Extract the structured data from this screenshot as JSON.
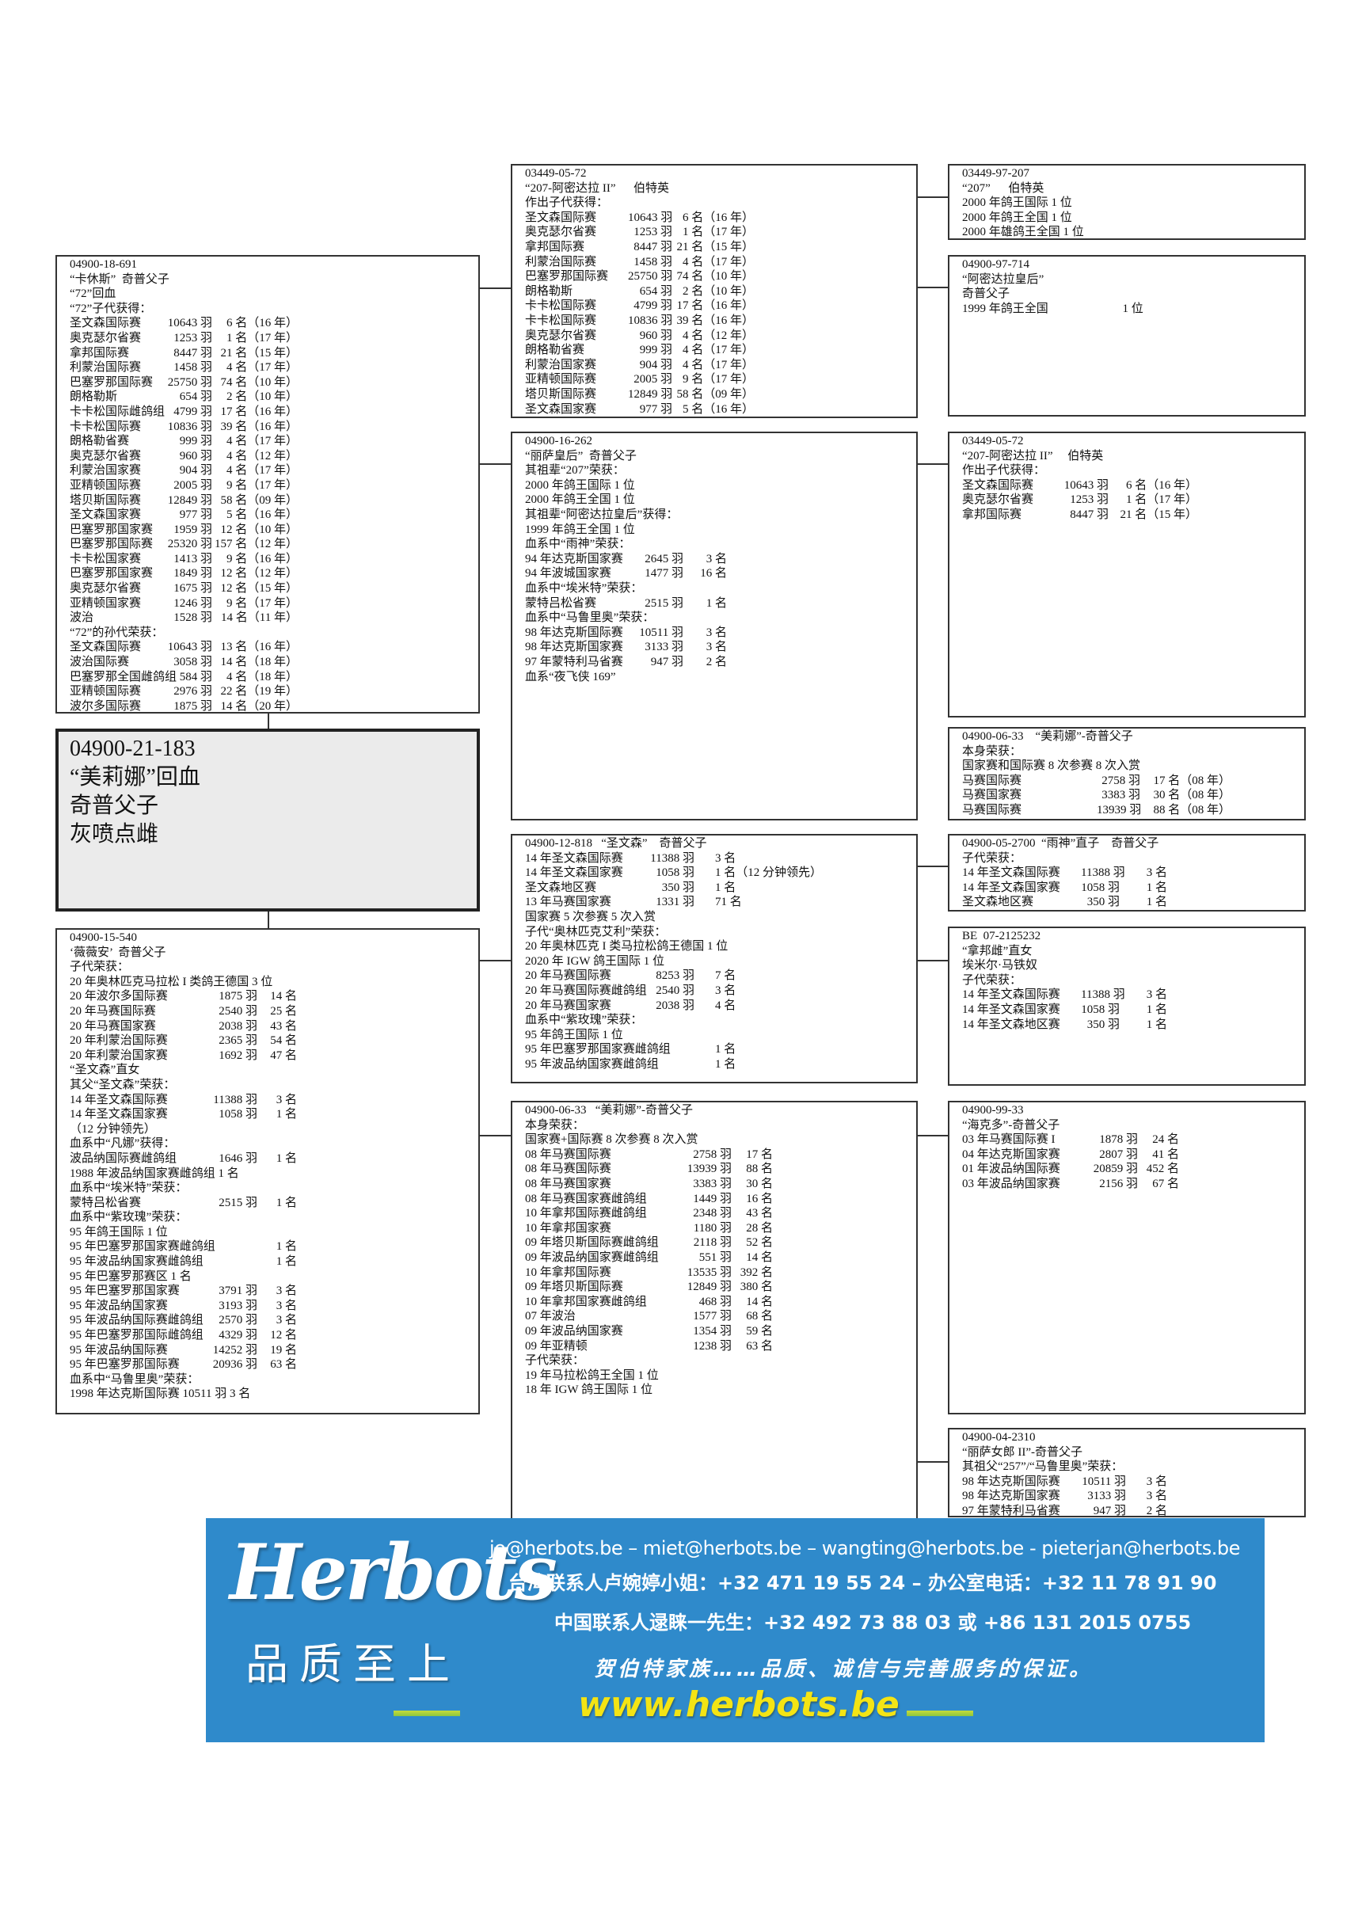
{
  "subject": {
    "ring": "04900-21-183",
    "name": "“美莉娜”回血",
    "breeder": "奇普父子",
    "color": "灰喷点雌"
  },
  "boxes": {
    "L1": [
      "04900-18-691",
      "“卡休斯”  奇普父子",
      "“72”回血",
      "“72”子代获得：",
      [
        "圣文森国际赛",
        "10643 羽",
        "6 名（16 年）"
      ],
      [
        "奥克瑟尔省赛",
        "1253 羽",
        "1 名（17 年）"
      ],
      [
        "拿邦国际赛",
        "8447 羽",
        "21 名（15 年）"
      ],
      [
        "利蒙治国际赛",
        "1458 羽",
        "4 名（17 年）"
      ],
      [
        "巴塞罗那国际赛",
        "25750 羽",
        "74 名（10 年）"
      ],
      [
        "朗格勒斯",
        "654 羽",
        "2 名（10 年）"
      ],
      [
        "卡卡松国际雌鸽组",
        "4799 羽",
        "17 名（16 年）"
      ],
      [
        "卡卡松国际赛",
        "10836 羽",
        "39 名（16 年）"
      ],
      [
        "朗格勒省赛",
        "999 羽",
        "4 名（17 年）"
      ],
      [
        "奥克瑟尔省赛",
        "960 羽",
        "4 名（12 年）"
      ],
      [
        "利蒙治国家赛",
        "904 羽",
        "4 名（17 年）"
      ],
      [
        "亚精顿国际赛",
        "2005 羽",
        "9 名（17 年）"
      ],
      [
        "塔贝斯国际赛",
        "12849 羽",
        "58 名（09 年）"
      ],
      [
        "圣文森国家赛",
        "977 羽",
        "5 名（16 年）"
      ],
      [
        "巴塞罗那国家赛",
        "1959 羽",
        "12 名（10 年）"
      ],
      [
        "巴塞罗那国际赛",
        "25320 羽",
        "157 名（12 年）"
      ],
      [
        "卡卡松国家赛",
        "1413 羽",
        "9 名（16 年）"
      ],
      [
        "巴塞罗那国家赛",
        "1849 羽",
        "12 名（12 年）"
      ],
      [
        "奥克瑟尔省赛",
        "1675 羽",
        "12 名（15 年）"
      ],
      [
        "亚精顿国家赛",
        "1246 羽",
        "9 名（17 年）"
      ],
      [
        "波治",
        "1528 羽",
        "14 名（11 年）"
      ],
      "“72”的孙代荣获：",
      [
        "圣文森国际赛",
        "10643 羽",
        "13 名（16 年）"
      ],
      [
        "波治国际赛",
        "3058 羽",
        "14 名（18 年）"
      ],
      [
        "巴塞罗那全国雌鸽组",
        "584 羽",
        "4 名（18 年）"
      ],
      [
        "亚精顿国际赛",
        "2976 羽",
        "22 名（19 年）"
      ],
      [
        "波尔多国际赛",
        "1875 羽",
        "14 名（20 年）"
      ]
    ],
    "L2": [
      "04900-15-540",
      "‘薇薇安’  奇普父子",
      "子代荣获：",
      "20 年奥林匹克马拉松 I 类鸽王德国 3 位",
      [
        "20 年波尔多国际赛",
        "1875 羽",
        "14 名"
      ],
      [
        "20 年马赛国际赛",
        "2540 羽",
        "25 名"
      ],
      [
        "20 年马赛国家赛",
        "2038 羽",
        "43 名"
      ],
      [
        "20 年利蒙治国际赛",
        "2365 羽",
        "54 名"
      ],
      [
        "20 年利蒙治国家赛",
        "1692 羽",
        "47 名"
      ],
      "“圣文森”直女",
      "其父“圣文森”荣获：",
      [
        "14 年圣文森国际赛",
        "11388 羽",
        "3 名"
      ],
      [
        "14 年圣文森国家赛",
        "1058 羽",
        "1 名"
      ],
      "（12 分钟领先）",
      "血系中“凡娜”获得：",
      [
        "波品纳国际赛雌鸽组",
        "1646 羽",
        "1 名"
      ],
      "1988 年波品纳国家赛雌鸽组 1 名",
      "血系中“埃米特”荣获：",
      [
        "蒙特吕松省赛",
        "2515 羽",
        "1 名"
      ],
      "血系中“紫玫瑰”荣获：",
      "95 年鸽王国际 1 位",
      [
        "95 年巴塞罗那国家赛雌鸽组",
        "",
        "1 名"
      ],
      [
        "95 年波品纳国家赛雌鸽组",
        "",
        "1 名"
      ],
      "95 年巴塞罗那赛区 1 名",
      [
        "95 年巴塞罗那国家赛",
        "3791 羽",
        "3 名"
      ],
      [
        "95 年波品纳国家赛",
        "3193 羽",
        "3 名"
      ],
      [
        "95 年波品纳国际赛雌鸽组",
        "2570 羽",
        "3 名"
      ],
      [
        "95 年巴塞罗那国际雌鸽组",
        "4329 羽",
        "12 名"
      ],
      [
        "95 年波品纳国际赛",
        "14252 羽",
        "19 名"
      ],
      [
        "95 年巴塞罗那国际赛",
        "20936 羽",
        "63 名"
      ],
      "血系中“马鲁里奥”荣获：",
      "1998 年达克斯国际赛 10511 羽 3 名"
    ],
    "M1": [
      "03449-05-72",
      "“207-阿密达拉 II”      伯特英",
      "作出子代获得：",
      [
        "圣文森国际赛",
        "10643 羽",
        "6 名（16 年）"
      ],
      [
        "奥克瑟尔省赛",
        "1253 羽",
        "1 名（17 年）"
      ],
      [
        "拿邦国际赛",
        "8447 羽",
        "21 名（15 年）"
      ],
      [
        "利蒙治国际赛",
        "1458 羽",
        "4 名（17 年）"
      ],
      [
        "巴塞罗那国际赛",
        "25750 羽",
        "74 名（10 年）"
      ],
      [
        "朗格勒斯",
        "654 羽",
        "2 名（10 年）"
      ],
      [
        "卡卡松国际赛",
        "4799 羽",
        "17 名（16 年）"
      ],
      [
        "卡卡松国际赛",
        "10836 羽",
        "39 名（16 年）"
      ],
      [
        "奥克瑟尔省赛",
        "960 羽",
        "4 名（12 年）"
      ],
      [
        "朗格勒省赛",
        "999 羽",
        "4 名（17 年）"
      ],
      [
        "利蒙治国家赛",
        "904 羽",
        "4 名（17 年）"
      ],
      [
        "亚精顿国际赛",
        "2005 羽",
        "9 名（17 年）"
      ],
      [
        "塔贝斯国际赛",
        "12849 羽",
        "58 名（09 年）"
      ],
      [
        "圣文森国家赛",
        "977 羽",
        "5 名（16 年）"
      ]
    ],
    "M2": [
      "04900-16-262",
      "“丽萨皇后”  奇普父子",
      "其祖辈“207”荣获：",
      "2000 年鸽王国际 1 位",
      "2000 年鸽王全国 1 位",
      "其祖辈“阿密达拉皇后”获得：",
      "1999 年鸽王全国 1 位",
      "血系中“雨神”荣获：",
      [
        "94 年达克斯国家赛",
        "2645 羽",
        "3 名"
      ],
      [
        "94 年波城国家赛",
        "1477 羽",
        "16 名"
      ],
      "血系中“埃米特”荣获：",
      [
        "蒙特吕松省赛",
        "2515 羽",
        "1 名"
      ],
      "血系中“马鲁里奥”荣获：",
      [
        "98 年达克斯国际赛",
        "10511 羽",
        "3 名"
      ],
      [
        "98 年达克斯国家赛",
        "3133 羽",
        "3 名"
      ],
      [
        "97 年蒙特利马省赛",
        "947 羽",
        "2 名"
      ],
      "血系“夜飞侠 169”"
    ],
    "M3": [
      "04900-12-818   “圣文森”    奇普父子",
      [
        "14 年圣文森国际赛",
        "11388 羽",
        "3 名"
      ],
      [
        "14 年圣文森国家赛",
        "1058 羽",
        "1 名（12 分钟领先）"
      ],
      [
        "圣文森地区赛",
        "350 羽",
        "1 名"
      ],
      [
        "13 年马赛国家赛",
        "1331 羽",
        "71 名"
      ],
      "国家赛 5 次参赛 5 次入赏",
      "子代“奥林匹克艾利”荣获：",
      "20 年奥林匹克 I 类马拉松鸽王德国 1 位",
      "2020 年 IGW 鸽王国际 1 位",
      [
        "20 年马赛国际赛",
        "8253 羽",
        "7 名"
      ],
      [
        "20 年马赛国际赛雌鸽组",
        "2540 羽",
        "3 名"
      ],
      [
        "20 年马赛国家赛",
        "2038 羽",
        "4 名"
      ],
      "血系中“紫玫瑰”荣获：",
      "95 年鸽王国际 1 位",
      [
        "95 年巴塞罗那国家赛雌鸽组",
        "",
        "1 名"
      ],
      [
        "95 年波品纳国家赛雌鸽组",
        "",
        "1 名"
      ]
    ],
    "M4": [
      "04900-06-33   “美莉娜”-奇普父子",
      "本身荣获：",
      "国家赛+国际赛 8 次参赛 8 次入赏",
      [
        "08 年马赛国际赛",
        "2758 羽",
        "17 名"
      ],
      [
        "08 年马赛国际赛",
        "13939 羽",
        "88 名"
      ],
      [
        "08 年马赛国家赛",
        "3383 羽",
        "30 名"
      ],
      [
        "08 年马赛国家赛雌鸽组",
        "1449 羽",
        "16 名"
      ],
      [
        "10 年拿邦国际赛雌鸽组",
        "2348 羽",
        "43 名"
      ],
      [
        "10 年拿邦国家赛",
        "1180 羽",
        "28 名"
      ],
      [
        "09 年塔贝斯国际赛雌鸽组",
        "2118 羽",
        "52 名"
      ],
      [
        "09 年波品纳国家赛雌鸽组",
        "551 羽",
        "14 名"
      ],
      [
        "10 年拿邦国际赛",
        "13535 羽",
        "392 名"
      ],
      [
        "09 年塔贝斯国际赛",
        "12849 羽",
        "380 名"
      ],
      [
        "10 年拿邦国家赛雌鸽组",
        "468 羽",
        "14 名"
      ],
      [
        "07 年波治",
        "1577 羽",
        "68 名"
      ],
      [
        "09 年波品纳国家赛",
        "1354 羽",
        "59 名"
      ],
      [
        "09 年亚精顿",
        "1238 羽",
        "63 名"
      ],
      "子代荣获：",
      "19 年马拉松鸽王全国 1 位",
      "18 年 IGW 鸽王国际 1 位"
    ],
    "R1": [
      "03449-97-207",
      "“207”      伯特英",
      "2000 年鸽王国际 1 位",
      "2000 年鸽王全国 1 位",
      "2000 年雄鸽王全国 1 位"
    ],
    "R2": [
      "04900-97-714",
      "“阿密达拉皇后”",
      "奇普父子",
      "1999 年鸽王全国                         1 位"
    ],
    "R3": [
      "03449-05-72",
      "“207-阿密达拉 II”     伯特英",
      "作出子代获得：",
      [
        "圣文森国际赛",
        "10643 羽",
        "6 名（16 年）"
      ],
      [
        "奥克瑟尔省赛",
        "1253 羽",
        "1 名（17 年）"
      ],
      [
        "拿邦国际赛",
        "8447 羽",
        "21 名（15 年）"
      ]
    ],
    "R4": [
      "04900-06-33    “美莉娜”-奇普父子",
      "本身荣获：",
      "国家赛和国际赛 8 次参赛 8 次入赏",
      [
        "马赛国际赛",
        "2758 羽",
        "17 名（08 年）"
      ],
      [
        "马赛国家赛",
        "3383 羽",
        "30 名（08 年）"
      ],
      [
        "马赛国际赛",
        "13939 羽",
        "88 名（08 年）"
      ]
    ],
    "R5": [
      "04900-05-2700  “雨神”直子    奇普父子",
      "子代荣获：",
      [
        "14 年圣文森国际赛",
        "11388 羽",
        "3 名"
      ],
      [
        "14 年圣文森国家赛",
        "1058 羽",
        "1 名"
      ],
      [
        "圣文森地区赛",
        "350 羽",
        "1 名"
      ]
    ],
    "R6": [
      "BE  07-2125232",
      "“拿邦雌”直女",
      "埃米尔·马铁奴",
      "子代荣获：",
      [
        "14 年圣文森国际赛",
        "11388 羽",
        "3 名"
      ],
      [
        "14 年圣文森国家赛",
        "1058 羽",
        "1 名"
      ],
      [
        "14 年圣文森地区赛",
        "350 羽",
        "1 名"
      ]
    ],
    "R7": [
      "04900-99-33",
      "“海克多”-奇普父子",
      [
        "03 年马赛国际赛 I",
        "1878 羽",
        "24 名"
      ],
      [
        "04 年达克斯国家赛",
        "2807 羽",
        "41 名"
      ],
      [
        "01 年波品纳国际赛",
        "20859 羽",
        "452 名"
      ],
      [
        "03 年波品纳国家赛",
        "2156 羽",
        "67 名"
      ]
    ],
    "R8": [
      "04900-04-2310",
      "“丽萨女郎 II”-奇普父子",
      "其祖父“257”/“马鲁里奥”荣获：",
      [
        "98 年达克斯国际赛",
        "10511 羽",
        "3 名"
      ],
      [
        "98 年达克斯国家赛",
        "3133 羽",
        "3 名"
      ],
      [
        "97 年蒙特利马省赛",
        "947 羽",
        "2 名"
      ]
    ]
  },
  "banner": {
    "logo": "Herbots",
    "slogan": "品质至上",
    "emails": "jo@herbots.be – miet@herbots.be – wangting@herbots.be - pieterjan@herbots.be",
    "taiwan_contact": "台湾联系人卢婉婷小姐：+32 471 19 55 24 – 办公室电话：+32 11 78 91 90",
    "china_contact": "中国联系人逯睐一先生：+32 492 73 88 03 或 +86 131 2015 0755",
    "motto": "贺伯特家族……品质、诚信与完善服务的保证。",
    "website": "www.herbots.be",
    "background_color": "#2f8acb",
    "website_color": "#f4e414"
  }
}
